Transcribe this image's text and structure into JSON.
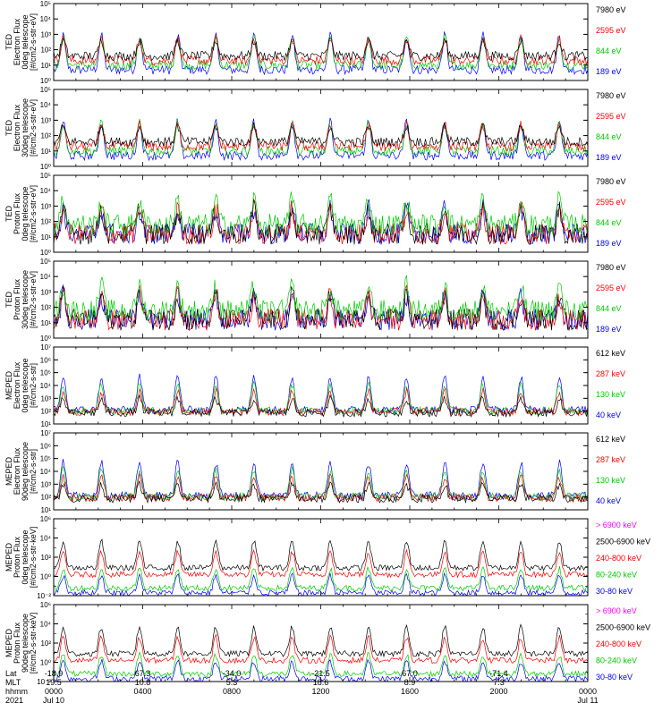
{
  "panels": [
    {
      "ylabel": [
        "TED",
        "Electron Flux",
        "0deg telescope",
        "[#/cm2-s-str-eV]"
      ],
      "ylog": [
        0,
        5
      ],
      "tick_labels": [
        "10⁰",
        "10¹",
        "10²",
        "10³",
        "10⁴",
        "10⁵"
      ],
      "legend": [
        {
          "label": "7980 eV",
          "color": "#000000"
        },
        {
          "label": "2595 eV",
          "color": "#ff0000"
        },
        {
          "label": "844 eV",
          "color": "#00cc00"
        },
        {
          "label": "189 eV",
          "color": "#0000ff"
        }
      ]
    },
    {
      "ylabel": [
        "TED",
        "Electron Flux",
        "30deg telescope",
        "[#/cm2-s-str-eV]"
      ],
      "ylog": [
        0,
        5
      ],
      "tick_labels": [
        "10⁰",
        "10¹",
        "10²",
        "10³",
        "10⁴",
        "10⁵"
      ],
      "legend": [
        {
          "label": "7980 eV",
          "color": "#000000"
        },
        {
          "label": "2595 eV",
          "color": "#ff0000"
        },
        {
          "label": "844 eV",
          "color": "#00cc00"
        },
        {
          "label": "189 eV",
          "color": "#0000ff"
        }
      ]
    },
    {
      "ylabel": [
        "TED",
        "Proton Flux",
        "0deg telescope",
        "[#/cm2-s-str-eV]"
      ],
      "ylog": [
        0,
        5
      ],
      "tick_labels": [
        "10⁰",
        "10¹",
        "10²",
        "10³",
        "10⁴",
        "10⁵"
      ],
      "legend": [
        {
          "label": "7980 eV",
          "color": "#000000"
        },
        {
          "label": "2595 eV",
          "color": "#ff0000"
        },
        {
          "label": "844 eV",
          "color": "#00cc00"
        },
        {
          "label": "189 eV",
          "color": "#0000ff"
        }
      ]
    },
    {
      "ylabel": [
        "TED",
        "Proton Flux",
        "30deg telescope",
        "[#/cm2-s-str-eV]"
      ],
      "ylog": [
        0,
        5
      ],
      "tick_labels": [
        "10⁰",
        "10¹",
        "10²",
        "10³",
        "10⁴",
        "10⁵"
      ],
      "legend": [
        {
          "label": "7980 eV",
          "color": "#000000"
        },
        {
          "label": "2595 eV",
          "color": "#ff0000"
        },
        {
          "label": "844 eV",
          "color": "#00cc00"
        },
        {
          "label": "189 eV",
          "color": "#0000ff"
        }
      ]
    },
    {
      "ylabel": [
        "MEPED",
        "Electron Flux",
        "0deg telescope",
        "[#/cm2-s-str]"
      ],
      "ylog": [
        1,
        7
      ],
      "tick_labels": [
        "10¹",
        "10²",
        "10³",
        "10⁴",
        "10⁵",
        "10⁶",
        "10⁷"
      ],
      "legend": [
        {
          "label": "612 keV",
          "color": "#000000"
        },
        {
          "label": "287 keV",
          "color": "#ff0000"
        },
        {
          "label": "130 keV",
          "color": "#00cc00"
        },
        {
          "label": "40 keV",
          "color": "#0000ff"
        }
      ]
    },
    {
      "ylabel": [
        "MEPED",
        "Electron Flux",
        "90deg telescope",
        "[#/cm2-s-str]"
      ],
      "ylog": [
        1,
        7
      ],
      "tick_labels": [
        "10¹",
        "10²",
        "10³",
        "10⁴",
        "10⁵",
        "10⁶",
        "10⁷"
      ],
      "legend": [
        {
          "label": "612 keV",
          "color": "#000000"
        },
        {
          "label": "287 keV",
          "color": "#ff0000"
        },
        {
          "label": "130 keV",
          "color": "#00cc00"
        },
        {
          "label": "40 keV",
          "color": "#0000ff"
        }
      ]
    },
    {
      "ylabel": [
        "MEPED",
        "Proton Flux",
        "0deg telescope",
        "[#/cm2-s-str-keV]"
      ],
      "ylog": [
        -2,
        6
      ],
      "tick_labels": [
        "10⁻²",
        "10⁰",
        "10²",
        "10⁴",
        "10⁶"
      ],
      "legend": [
        {
          "label": "> 6900 keV",
          "color": "#ff00ff"
        },
        {
          "label": "2500-6900 keV",
          "color": "#000000"
        },
        {
          "label": "240-800 keV",
          "color": "#ff0000"
        },
        {
          "label": "80-240 keV",
          "color": "#00cc00"
        },
        {
          "label": "30-80 keV",
          "color": "#0000ff"
        }
      ]
    },
    {
      "ylabel": [
        "MEPED",
        "Proton Flux",
        "90deg telescope",
        "[#/cm2-s-str-keV]"
      ],
      "ylog": [
        -2,
        6
      ],
      "tick_labels": [
        "10⁻²",
        "10⁰",
        "10²",
        "10⁴",
        "10⁶"
      ],
      "legend": [
        {
          "label": "> 6900 keV",
          "color": "#ff00ff"
        },
        {
          "label": "2500-6900 keV",
          "color": "#000000"
        },
        {
          "label": "240-800 keV",
          "color": "#ff0000"
        },
        {
          "label": "80-240 keV",
          "color": "#00cc00"
        },
        {
          "label": "30-80 keV",
          "color": "#0000ff"
        }
      ]
    }
  ],
  "footer": {
    "row_labels": [
      "Lat",
      "MLT",
      "hhmm",
      "2021"
    ],
    "columns": [
      {
        "lat": "-18.9",
        "mlt": "19.5",
        "hhmm": "0000",
        "date": "Jul 10"
      },
      {
        "lat": "67.3",
        "mlt": "10.8",
        "hhmm": "0400",
        "date": ""
      },
      {
        "lat": "-34.0",
        "mlt": "5.3",
        "hhmm": "0800",
        "date": ""
      },
      {
        "lat": "-21.5",
        "mlt": "18.6",
        "hhmm": "1200",
        "date": ""
      },
      {
        "lat": "67.0",
        "mlt": "8.9",
        "hhmm": "1600",
        "date": ""
      },
      {
        "lat": "-71.4",
        "mlt": "7.3",
        "hhmm": "2000",
        "date": ""
      },
      {
        "lat": "",
        "mlt": "",
        "hhmm": "0000",
        "date": "Jul 11"
      }
    ]
  },
  "chart_data": {
    "type": "line",
    "x_range_hours": [
      0,
      24
    ],
    "x_ticks_hours": [
      0,
      4,
      8,
      12,
      16,
      20,
      24
    ],
    "y_scale": "log",
    "panels": 8
  }
}
